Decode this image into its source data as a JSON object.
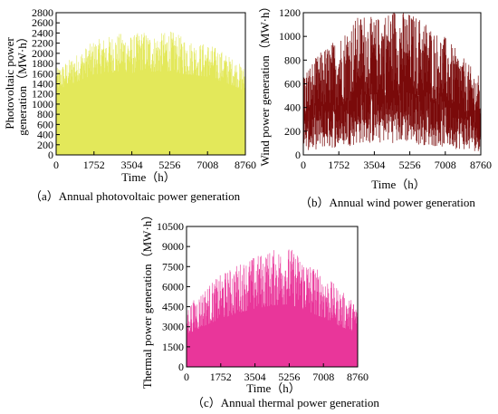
{
  "chart_data": [
    {
      "type": "area",
      "caption": "（a）Annual photovoltaic power generation",
      "xlabel": "Time（h）",
      "ylabel": [
        "Photovoltaic power",
        "generation（MW·h）"
      ],
      "xlim": [
        0,
        8760
      ],
      "ylim": [
        0,
        2800
      ],
      "xticks": [
        "0",
        "1752",
        "3504",
        "5256",
        "7008",
        "8760"
      ],
      "yticks": [
        "0",
        "200",
        "400",
        "600",
        "800",
        "1000",
        "1200",
        "1400",
        "1600",
        "1800",
        "2000",
        "2200",
        "2400",
        "2600",
        "2800"
      ],
      "color": "#e3e85a",
      "series": [
        {
          "values_hourly_envelope": {
            "x": [
              0,
              500,
              1000,
              1752,
              2500,
              3000,
              3504,
              4000,
              4500,
              5256,
              6000,
              6500,
              7008,
              7500,
              8000,
              8500,
              8760
            ],
            "max": [
              1700,
              1850,
              2000,
              2250,
              2350,
              2400,
              2350,
              2450,
              2350,
              2450,
              2300,
              2200,
              2200,
              2100,
              1950,
              1800,
              1700
            ],
            "min": [
              900,
              950,
              1000,
              1050,
              1000,
              1050,
              1000,
              1050,
              1050,
              1000,
              1000,
              1050,
              1000,
              950,
              950,
              900,
              900
            ]
          }
        }
      ]
    },
    {
      "type": "line",
      "caption": "（b）Annual wind power generation",
      "xlabel": "Time（h）",
      "ylabel": [
        "Wind power generation（MW·h）"
      ],
      "xlim": [
        0,
        8760
      ],
      "ylim": [
        0,
        1200
      ],
      "xticks": [
        "0",
        "1752",
        "3504",
        "5256",
        "7008",
        "8760"
      ],
      "yticks": [
        "0",
        "200",
        "400",
        "600",
        "800",
        "1000",
        "1200"
      ],
      "color": "#7a0a0a",
      "series": [
        {
          "values_hourly_envelope": {
            "x": [
              0,
              500,
              1000,
              1752,
              2500,
              3000,
              3504,
              4000,
              4500,
              5256,
              6000,
              6500,
              7008,
              7500,
              8000,
              8500,
              8760
            ],
            "max": [
              700,
              800,
              900,
              1000,
              1150,
              1200,
              1150,
              1200,
              1250,
              1200,
              1150,
              1050,
              1000,
              900,
              800,
              700,
              650
            ],
            "min": [
              30,
              40,
              50,
              60,
              80,
              100,
              90,
              100,
              100,
              90,
              80,
              70,
              60,
              50,
              40,
              30,
              30
            ]
          }
        }
      ]
    },
    {
      "type": "area",
      "caption": "（c）Annual thermal power generation",
      "xlabel": "Time（h）",
      "ylabel": [
        "Thermal power generation（MW·h）"
      ],
      "xlim": [
        0,
        8760
      ],
      "ylim": [
        0,
        10500
      ],
      "xticks": [
        "0",
        "1752",
        "3504",
        "5256",
        "7008",
        "8760"
      ],
      "yticks": [
        "0",
        "1500",
        "3000",
        "4500",
        "6000",
        "7500",
        "9000",
        "10500"
      ],
      "color": "#e9369a",
      "series": [
        {
          "values_hourly_envelope": {
            "x": [
              0,
              500,
              1000,
              1752,
              2500,
              3000,
              3504,
              4000,
              4500,
              5256,
              6000,
              6500,
              7008,
              7500,
              8000,
              8500,
              8760
            ],
            "max": [
              4500,
              5200,
              6000,
              6900,
              7600,
              8000,
              8300,
              8600,
              8800,
              9000,
              8200,
              7600,
              7000,
              6300,
              5600,
              5000,
              4600
            ],
            "min": [
              700,
              750,
              800,
              900,
              1000,
              1050,
              1100,
              1150,
              1200,
              1150,
              1100,
              1000,
              950,
              900,
              800,
              750,
              700
            ]
          }
        }
      ]
    }
  ]
}
